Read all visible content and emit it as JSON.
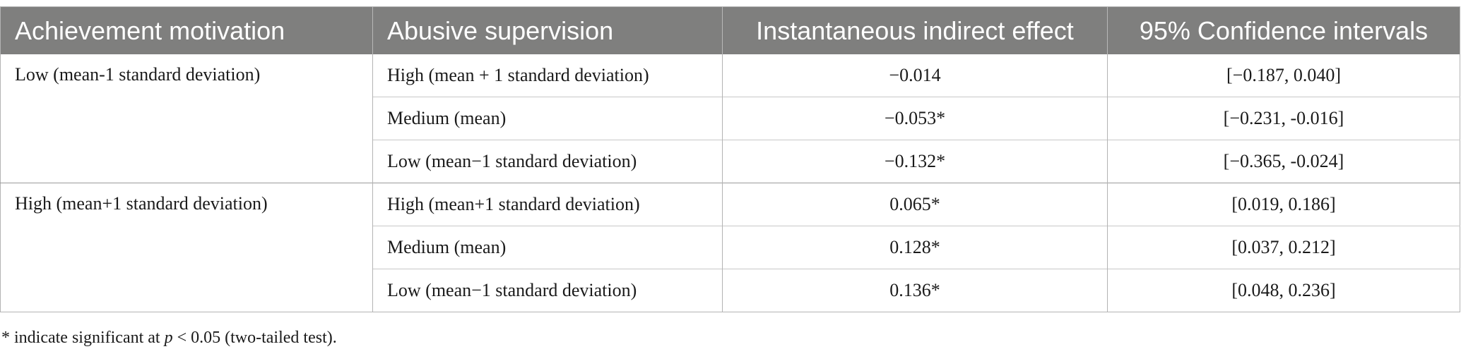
{
  "table": {
    "headers": [
      "Achievement motivation",
      "Abusive supervision",
      "Instantaneous indirect effect",
      "95% Confidence intervals"
    ],
    "groups": [
      {
        "label": "Low (mean-1 standard deviation)",
        "rows": [
          {
            "abusive": "High (mean + 1 standard deviation)",
            "effect": "−0.014",
            "ci": "[−0.187, 0.040]"
          },
          {
            "abusive": "Medium (mean)",
            "effect": "−0.053*",
            "ci": "[−0.231, -0.016]"
          },
          {
            "abusive": "Low (mean−1 standard deviation)",
            "effect": "−0.132*",
            "ci": "[−0.365, -0.024]"
          }
        ]
      },
      {
        "label": "High (mean+1 standard deviation)",
        "rows": [
          {
            "abusive": "High (mean+1 standard deviation)",
            "effect": "0.065*",
            "ci": "[0.019, 0.186]"
          },
          {
            "abusive": "Medium (mean)",
            "effect": "0.128*",
            "ci": "[0.037, 0.212]"
          },
          {
            "abusive": "Low (mean−1 standard deviation)",
            "effect": "0.136*",
            "ci": "[0.048, 0.236]"
          }
        ]
      }
    ]
  },
  "footnote": {
    "prefix": "* indicate significant at ",
    "p_symbol": "p",
    "suffix": " < 0.05 (two-tailed test)."
  }
}
